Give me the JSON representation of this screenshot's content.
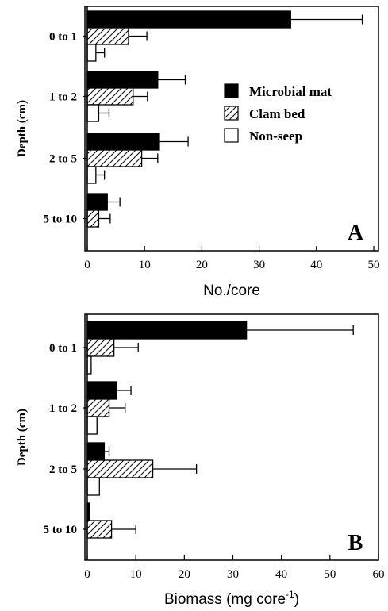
{
  "chart_data": [
    {
      "type": "bar",
      "orientation": "horizontal",
      "panel_label": "A",
      "categories": [
        "0 to 1",
        "1 to 2",
        "2 to 5",
        "5 to 10"
      ],
      "series": [
        {
          "name": "Microbial mat",
          "values": [
            35.5,
            12.3,
            12.6,
            3.5
          ],
          "errors": [
            12.5,
            4.8,
            5.0,
            2.2
          ],
          "color": "#000000"
        },
        {
          "name": "Clam bed",
          "values": [
            7.2,
            8.0,
            9.5,
            2.0
          ],
          "errors": [
            3.2,
            2.5,
            2.8,
            2.0
          ],
          "color": "hatch"
        },
        {
          "name": "Non-seep",
          "values": [
            1.5,
            2.0,
            1.5,
            null
          ],
          "errors": [
            1.5,
            1.8,
            1.5,
            null
          ],
          "color": "#ffffff"
        }
      ],
      "xlabel": "No./core",
      "ylabel": "Depth (cm)",
      "xlim": [
        0,
        50
      ],
      "xticks": [
        "0",
        "10",
        "20",
        "30",
        "40",
        "50"
      ],
      "legend": "right",
      "grid": false
    },
    {
      "type": "bar",
      "orientation": "horizontal",
      "panel_label": "B",
      "categories": [
        "0 to 1",
        "1 to 2",
        "2 to 5",
        "5 to 10"
      ],
      "series": [
        {
          "name": "Microbial mat",
          "values": [
            32.8,
            6.0,
            3.5,
            0.5
          ],
          "errors": [
            22.0,
            3.0,
            1.0,
            null
          ],
          "color": "#000000"
        },
        {
          "name": "Clam bed",
          "values": [
            5.5,
            4.5,
            13.5,
            5.0
          ],
          "errors": [
            5.0,
            3.3,
            9.0,
            5.0
          ],
          "color": "hatch"
        },
        {
          "name": "Non-seep",
          "values": [
            0.8,
            2.0,
            2.5,
            null
          ],
          "errors": [
            null,
            null,
            null,
            null
          ],
          "color": "#ffffff"
        }
      ],
      "xlabel": "Biomass (mg core",
      "xlabel_superscript": "-1",
      "xlabel_suffix": ")",
      "ylabel": "Depth (cm)",
      "xlim": [
        0,
        60
      ],
      "xticks": [
        "0",
        "10",
        "20",
        "30",
        "40",
        "50",
        "60"
      ],
      "grid": false
    }
  ]
}
